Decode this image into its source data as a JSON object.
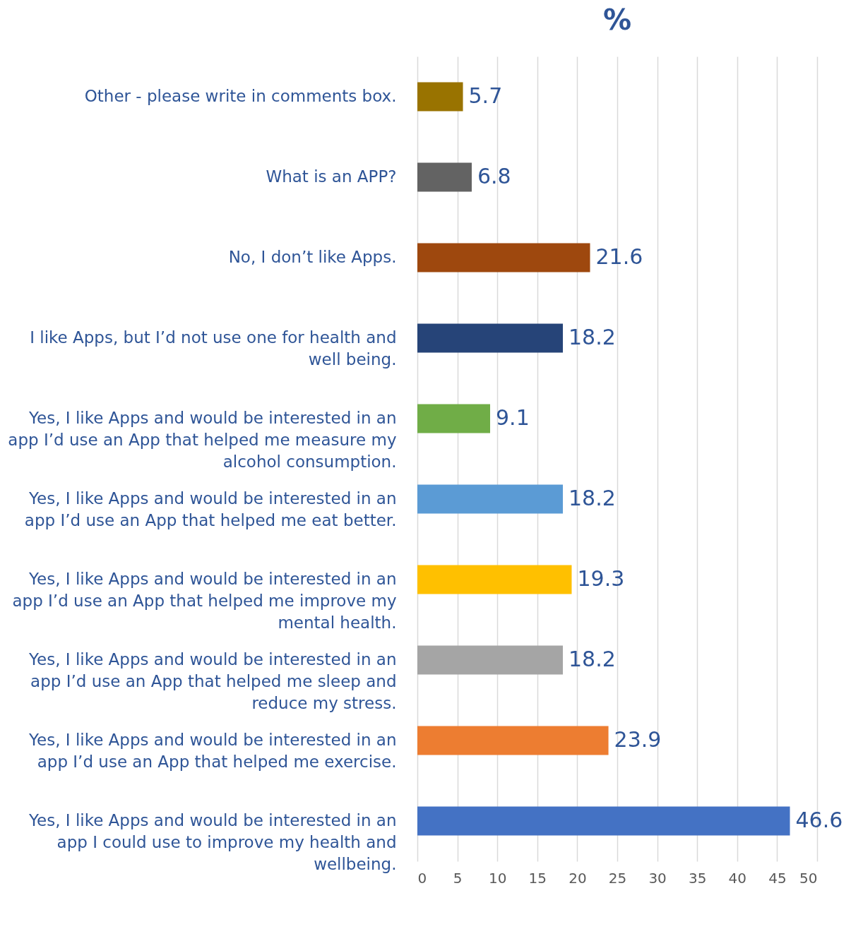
{
  "chart_data": {
    "type": "bar",
    "orientation": "horizontal",
    "title": "%",
    "categories": [
      "Other - please write in comments box.",
      "What is an APP?",
      "No, I don’t like Apps.",
      "I like Apps, but I’d not use one for health and well being.",
      "Yes, I like Apps and would be interested in an app I’d use an App that helped me measure my alcohol consumption.",
      "Yes, I like Apps and would be interested in an app I’d use an App that helped me eat better.",
      "Yes, I like Apps and would be interested in an app I’d use an App that helped me improve my mental health.",
      "Yes, I like Apps and would be interested in an app I’d use an App that helped me sleep and reduce my stress.",
      "Yes, I like Apps and would be interested in an app I’d use an App that helped me exercise.",
      "Yes, I like Apps and would be interested in an app I could use to improve my health and wellbeing."
    ],
    "values": [
      5.7,
      6.8,
      21.6,
      18.2,
      9.1,
      18.2,
      19.3,
      18.2,
      23.9,
      46.6
    ],
    "colors": [
      "#997300",
      "#636363",
      "#9e480e",
      "#264478",
      "#70ad47",
      "#5b9bd5",
      "#ffc000",
      "#a5a5a5",
      "#ed7d31",
      "#4472c4"
    ],
    "xlim": [
      0,
      50
    ],
    "xticks": [
      0,
      5,
      10,
      15,
      20,
      25,
      30,
      35,
      40,
      45,
      50
    ],
    "grid": "x",
    "data_labels": true
  }
}
